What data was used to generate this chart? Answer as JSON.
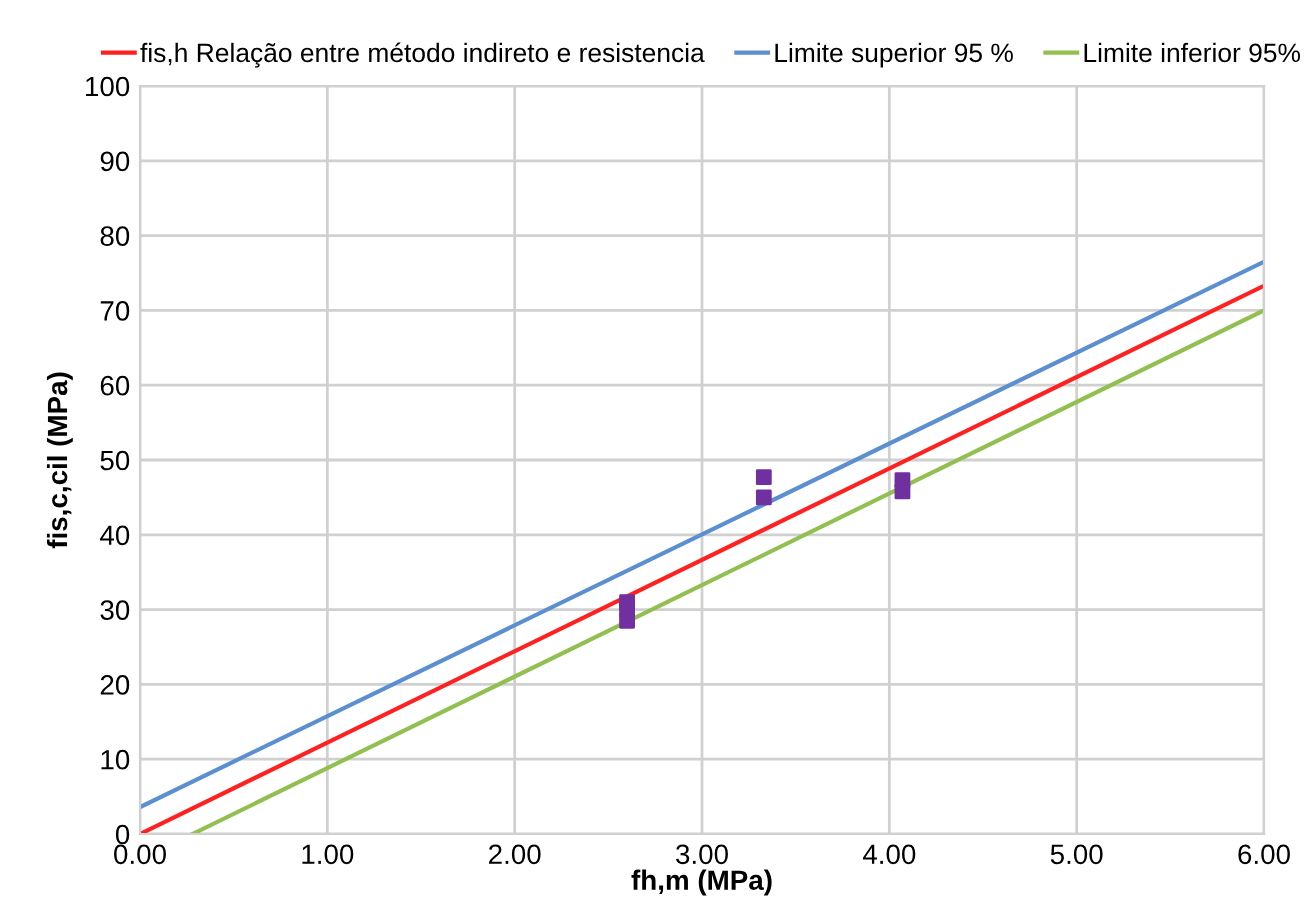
{
  "chart_data": {
    "type": "line",
    "xlabel": "fh,m (MPa)",
    "ylabel": "fis,c,cil (MPa)",
    "series": [
      {
        "name": "fis,h Relação entre método indireto e resistencia",
        "color": "#ff2020",
        "x": [
          0,
          6
        ],
        "values": [
          0,
          73.3
        ]
      },
      {
        "name": "Limite superior 95 %",
        "color": "#5b8fd0",
        "x": [
          0,
          6
        ],
        "values": [
          3.6,
          76.5
        ]
      },
      {
        "name": "Limite inferior 95%",
        "color": "#92c050",
        "x": [
          0.28,
          6
        ],
        "values": [
          0,
          70
        ]
      },
      {
        "type": "scatter",
        "color": "#7030a0",
        "marker": "square",
        "x": [
          2.6,
          2.6,
          2.6,
          3.33,
          3.33,
          4.07,
          4.07
        ],
        "values": [
          28.5,
          30,
          31,
          45,
          47.7,
          45.8,
          47.3
        ]
      }
    ],
    "xlim": [
      0,
      6
    ],
    "xticks": [
      {
        "value": 0,
        "label": "0.00"
      },
      {
        "value": 1,
        "label": "1.00"
      },
      {
        "value": 2,
        "label": "2.00"
      },
      {
        "value": 3,
        "label": "3.00"
      },
      {
        "value": 4,
        "label": "4.00"
      },
      {
        "value": 5,
        "label": "5.00"
      },
      {
        "value": 6,
        "label": "6.00"
      }
    ],
    "ylim": [
      0,
      100
    ],
    "yticks": [
      0,
      10,
      20,
      30,
      40,
      50,
      60,
      70,
      80,
      90,
      100
    ],
    "grid": true,
    "legend": "top",
    "marker": "none"
  }
}
